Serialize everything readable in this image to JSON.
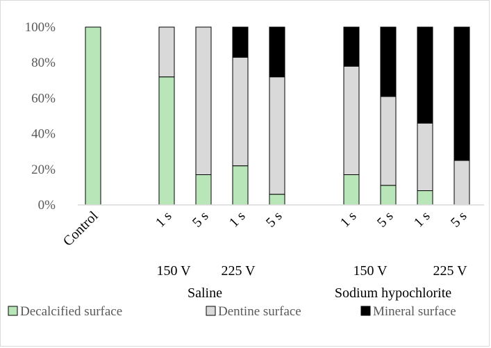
{
  "chart_data": {
    "type": "bar",
    "stacked": true,
    "percent": true,
    "categories": [
      "Control",
      "1 s",
      "5 s",
      "1 s",
      "5 s",
      "1 s",
      "5 s",
      "1 s",
      "5 s"
    ],
    "voltage_labels": [
      "150 V",
      "225 V",
      "150 V",
      "225 V"
    ],
    "solution_labels": [
      "Saline",
      "Sodium hypochlorite"
    ],
    "series": [
      {
        "name": "Decalcified surface",
        "color": "#b8e6b8",
        "values": [
          100,
          72,
          17,
          22,
          6,
          17,
          11,
          8,
          0
        ]
      },
      {
        "name": "Dentine surface",
        "color": "#d9d9d9",
        "values": [
          0,
          28,
          83,
          61,
          66,
          61,
          50,
          38,
          25
        ]
      },
      {
        "name": "Mineral surface",
        "color": "#000000",
        "values": [
          0,
          0,
          0,
          17,
          28,
          22,
          39,
          54,
          75
        ]
      }
    ],
    "yticks": [
      "0%",
      "20%",
      "40%",
      "60%",
      "80%",
      "100%"
    ],
    "ylim": [
      0,
      100
    ],
    "grid": false,
    "legend_position": "bottom"
  }
}
